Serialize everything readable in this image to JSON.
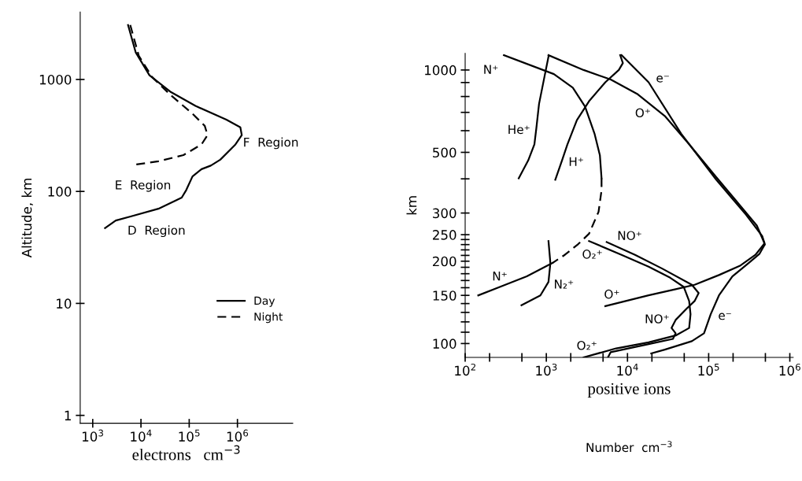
{
  "chart_data": [
    {
      "type": "line",
      "xlabel": "electrons   cm$^{−3}$",
      "ylabel": "Altitude, km",
      "log": "xy",
      "legend": "lower right",
      "xlim": [
        550,
        14000000
      ],
      "ylim": [
        0.85,
        4000
      ],
      "xticks": [
        {
          "value": 1000,
          "label": "10$^{3}$"
        },
        {
          "value": 10000,
          "label": "10$^{4}$"
        },
        {
          "value": 100000,
          "label": "10$^{5}$"
        },
        {
          "value": 1000000,
          "label": "10$^{6}$"
        }
      ],
      "yticks": [
        1,
        10,
        100,
        1000
      ],
      "series": [
        {
          "name": "Day",
          "color": "#000000",
          "line_style": "solid",
          "x": [
            5400,
            7800,
            15000,
            42000,
            135000,
            590000,
            1150000,
            1230000,
            910000,
            440000,
            280000,
            180000,
            117000,
            87000,
            70000,
            23000,
            6300,
            3000,
            1800
          ],
          "values": [
            3060,
            1740,
            1090,
            770,
            580,
            437,
            373,
            318,
            263,
            192,
            170,
            158,
            136,
            103,
            88,
            70,
            60,
            55,
            47
          ]
        },
        {
          "name": "Night",
          "color": "#000000",
          "line_style": "dashed",
          "x": [
            6000,
            9000,
            17000,
            42000,
            117000,
            210000,
            240000,
            180000,
            76000,
            23000,
            7200
          ],
          "values": [
            3060,
            1630,
            1050,
            720,
            494,
            385,
            318,
            263,
            211,
            186,
            173
          ]
        }
      ],
      "annotations": [
        "F  Region",
        "E  Region",
        "D  Region"
      ]
    },
    {
      "type": "line",
      "xlabel": "positive ions",
      "ylabel": "km",
      "log": "xy",
      "xlim": [
        100,
        1100000
      ],
      "ylim": [
        89,
        1150
      ],
      "xticks": [
        {
          "value": 100,
          "label": "10$^{2}$"
        },
        {
          "value": 200,
          "label": null
        },
        {
          "value": 500,
          "label": null
        },
        {
          "value": 1000,
          "label": "10$^{3}$"
        },
        {
          "value": 2000,
          "label": null
        },
        {
          "value": 5000,
          "label": null
        },
        {
          "value": 10000,
          "label": "10$^{4}$"
        },
        {
          "value": 20000,
          "label": null
        },
        {
          "value": 50000,
          "label": null
        },
        {
          "value": 100000,
          "label": "10$^{5}$"
        },
        {
          "value": 200000,
          "label": null
        },
        {
          "value": 500000,
          "label": null
        },
        {
          "value": 1000000,
          "label": "10$^{6}$"
        }
      ],
      "yticks": [
        100,
        {
          "value": 110,
          "label": null
        },
        {
          "value": 120,
          "label": null
        },
        {
          "value": 130,
          "label": null
        },
        {
          "value": 140,
          "label": null
        },
        150,
        {
          "value": 160,
          "label": null
        },
        {
          "value": 170,
          "label": null
        },
        {
          "value": 180,
          "label": null
        },
        {
          "value": 190,
          "label": null
        },
        200,
        {
          "value": 210,
          "label": null
        },
        {
          "value": 220,
          "label": null
        },
        {
          "value": 230,
          "label": null
        },
        {
          "value": 240,
          "label": null
        },
        250,
        300,
        {
          "value": 400,
          "label": null
        },
        500,
        {
          "value": 600,
          "label": null
        },
        {
          "value": 700,
          "label": null
        },
        {
          "value": 800,
          "label": null
        },
        {
          "value": 900,
          "label": null
        },
        1000
      ],
      "series": [
        {
          "name": "N⁺",
          "color": "#000000",
          "line_style": "solid",
          "x": [
            300,
            1240,
            2120,
            3000,
            3920,
            4570,
            4790
          ],
          "values": [
            1133,
            966,
            862,
            735,
            586,
            488,
            402
          ]
        },
        {
          "color": "#000000",
          "line_style": "dashed",
          "x": [
            4790,
            4790,
            4400,
            3360,
            2470,
            1690,
            1190
          ],
          "values": [
            402,
            363,
            303,
            252,
            231,
            211,
            197
          ]
        },
        {
          "name": "N⁺",
          "color": "#000000",
          "line_style": "solid",
          "x": [
            1190,
            575,
            267,
            145
          ],
          "values": [
            197,
            176,
            161,
            150
          ]
        },
        {
          "name": "He⁺",
          "color": "#000000",
          "line_style": "solid",
          "x": [
            1063,
            948,
            813,
            753,
            713,
            598,
            457
          ],
          "values": [
            1119,
            944,
            751,
            612,
            535,
            467,
            402
          ]
        },
        {
          "name": "O⁺",
          "color": "#000000",
          "line_style": "solid",
          "x": [
            1063,
            2880,
            6210,
            13400,
            28800,
            57500,
            124000,
            229000,
            392000,
            486000,
            475000,
            377000,
            247000,
            134000,
            67100,
            39200,
            18200,
            5330
          ],
          "values": [
            1133,
            1000,
            923,
            815,
            679,
            535,
            406,
            327,
            270,
            233,
            230,
            211,
            193,
            178,
            164,
            158,
            150,
            137
          ]
        },
        {
          "name": "e⁻",
          "color": "#000000",
          "line_style": "solid",
          "x": [
            8450,
            18200,
            45700,
            124000,
            288000,
            457000,
            493000,
            486000,
            424000,
            311000,
            196000,
            134000,
            106000,
            87700,
            62100,
            28800,
            19600
          ],
          "values": [
            1133,
            902,
            586,
            397,
            296,
            247,
            230,
            229,
            213,
            197,
            176,
            150,
            128,
            109,
            102,
            95,
            92
          ]
        },
        {
          "name": "H⁺",
          "color": "#000000",
          "line_style": "solid",
          "x": [
            8130,
            8770,
            7820,
            5330,
            3360,
            2380,
            1820,
            1560,
            1290
          ],
          "values": [
            1133,
            1060,
            1000,
            902,
            769,
            656,
            535,
            467,
            397
          ]
        },
        {
          "name": "O₂⁺",
          "color": "#000000",
          "line_style": "solid",
          "x": [
            3360,
            8450,
            18200,
            33600,
            49400,
            57500,
            59800,
            57500,
            39200,
            18200,
            7240,
            2880
          ],
          "values": [
            237,
            211,
            191,
            174,
            161,
            143,
            128,
            114,
            107,
            101,
            96,
            89
          ]
        },
        {
          "name": "NO⁺",
          "color": "#000000",
          "line_style": "solid",
          "x": [
            5540,
            12400,
            26700,
            62100,
            75300,
            67100,
            53300,
            39200,
            34900,
            39200,
            36300,
            18200,
            6210,
            5750
          ],
          "values": [
            235,
            211,
            188,
            164,
            153,
            143,
            134,
            122,
            114,
            109,
            104,
            99.5,
            93,
            89
          ]
        },
        {
          "name": "N₂⁺",
          "color": "#000000",
          "line_style": "solid",
          "x": [
            1063,
            1122,
            1063,
            845,
            494
          ],
          "values": [
            237,
            197,
            168,
            150,
            138
          ]
        }
      ],
      "annotations": [
        "Number  cm$^{−3}$"
      ]
    }
  ]
}
